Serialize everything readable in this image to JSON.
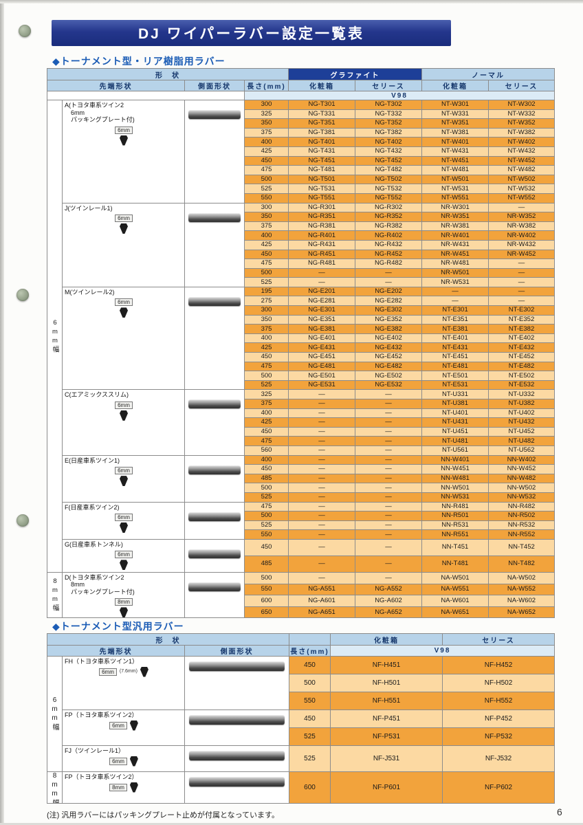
{
  "banner": {
    "title": "DJ ワイパーラバー設定一覧表"
  },
  "sections": [
    {
      "heading": "◆トーナメント型・リア樹脂用ラバー"
    },
    {
      "heading": "◆トーナメント型汎用ラバー"
    }
  ],
  "page": {
    "note": "(注) 汎用ラバーにはパッキングプレート止めが付属となっています。",
    "number": "6"
  },
  "colors": {
    "banner_navy": "#1a2d7c",
    "section_heading_blue": "#1b5cb5",
    "header_blue": "#b7d3e9",
    "graphite_navy": "#1d3f98",
    "v98_blue": "#dcebf6",
    "row_orange_dark": "#f2a33c",
    "row_orange_light": "#fcd9a2"
  },
  "table1": {
    "name": "rear-resin-rubber",
    "header": {
      "rows": [
        [
          {
            "t": "形　状",
            "cs": 4,
            "cls": "hb hshape"
          },
          {
            "t": "グラファイト",
            "cs": 2,
            "cls": "hg"
          },
          {
            "t": "ノーマル",
            "cs": 2,
            "cls": "hb"
          }
        ],
        [
          {
            "t": "先端形状",
            "cs": 2,
            "cls": "hb"
          },
          {
            "t": "側面形状",
            "cls": "hb"
          },
          {
            "t": "長さ(mm)",
            "cls": "hb"
          },
          {
            "t": "化粧箱",
            "cls": "hb"
          },
          {
            "t": "セリース",
            "cls": "hb"
          },
          {
            "t": "化粧箱",
            "cls": "hb"
          },
          {
            "t": "セリース",
            "cls": "hb"
          }
        ],
        [
          {
            "t": "",
            "cs": 3,
            "cls": "hw"
          },
          {
            "t": "V98",
            "cs": 5,
            "cls": "hv"
          }
        ]
      ]
    },
    "width_labels": [
      {
        "label": "6mm幅",
        "from_group": 0,
        "to_group": 6
      },
      {
        "label": "8mm幅",
        "from_group": 7,
        "to_group": 7
      }
    ],
    "groups": [
      {
        "id": "a",
        "size": "6mm",
        "lines": [
          "A(トヨタ車系ツイン2",
          "6mm",
          "パッキングプレート付)"
        ],
        "rows": [
          [
            "300",
            "NG-T301",
            "NG-T302",
            "NT-W301",
            "NT-W302"
          ],
          [
            "325",
            "NG-T331",
            "NG-T332",
            "NT-W331",
            "NT-W332"
          ],
          [
            "350",
            "NG-T351",
            "NG-T352",
            "NT-W351",
            "NT-W352"
          ],
          [
            "375",
            "NG-T381",
            "NG-T382",
            "NT-W381",
            "NT-W382"
          ],
          [
            "400",
            "NG-T401",
            "NG-T402",
            "NT-W401",
            "NT-W402"
          ],
          [
            "425",
            "NG-T431",
            "NG-T432",
            "NT-W431",
            "NT-W432"
          ],
          [
            "450",
            "NG-T451",
            "NG-T452",
            "NT-W451",
            "NT-W452"
          ],
          [
            "475",
            "NG-T481",
            "NG-T482",
            "NT-W481",
            "NT-W482"
          ],
          [
            "500",
            "NG-T501",
            "NG-T502",
            "NT-W501",
            "NT-W502"
          ],
          [
            "525",
            "NG-T531",
            "NG-T532",
            "NT-W531",
            "NT-W532"
          ],
          [
            "550",
            "NG-T551",
            "NG-T552",
            "NT-W551",
            "NT-W552"
          ]
        ]
      },
      {
        "id": "j",
        "size": "6mm",
        "lines": [
          "J(ツインレール1)"
        ],
        "rows": [
          [
            "300",
            "NG-R301",
            "NG-R302",
            "NR-W301",
            "—"
          ],
          [
            "350",
            "NG-R351",
            "NG-R352",
            "NR-W351",
            "NR-W352"
          ],
          [
            "375",
            "NG-R381",
            "NG-R382",
            "NR-W381",
            "NR-W382"
          ],
          [
            "400",
            "NG-R401",
            "NG-R402",
            "NR-W401",
            "NR-W402"
          ],
          [
            "425",
            "NG-R431",
            "NG-R432",
            "NR-W431",
            "NR-W432"
          ],
          [
            "450",
            "NG-R451",
            "NG-R452",
            "NR-W451",
            "NR-W452"
          ],
          [
            "475",
            "NG-R481",
            "NG-R482",
            "NR-W481",
            "—"
          ],
          [
            "500",
            "—",
            "—",
            "NR-W501",
            "—"
          ],
          [
            "525",
            "—",
            "—",
            "NR-W531",
            "—"
          ]
        ]
      },
      {
        "id": "m",
        "size": "6mm",
        "lines": [
          "M(ツインレール2)"
        ],
        "rows": [
          [
            "195",
            "NG-E201",
            "NG-E202",
            "—",
            "—"
          ],
          [
            "275",
            "NG-E281",
            "NG-E282",
            "—",
            "—"
          ],
          [
            "300",
            "NG-E301",
            "NG-E302",
            "NT-E301",
            "NT-E302"
          ],
          [
            "350",
            "NG-E351",
            "NG-E352",
            "NT-E351",
            "NT-E352"
          ],
          [
            "375",
            "NG-E381",
            "NG-E382",
            "NT-E381",
            "NT-E382"
          ],
          [
            "400",
            "NG-E401",
            "NG-E402",
            "NT-E401",
            "NT-E402"
          ],
          [
            "425",
            "NG-E431",
            "NG-E432",
            "NT-E431",
            "NT-E432"
          ],
          [
            "450",
            "NG-E451",
            "NG-E452",
            "NT-E451",
            "NT-E452"
          ],
          [
            "475",
            "NG-E481",
            "NG-E482",
            "NT-E481",
            "NT-E482"
          ],
          [
            "500",
            "NG-E501",
            "NG-E502",
            "NT-E501",
            "NT-E502"
          ],
          [
            "525",
            "NG-E531",
            "NG-E532",
            "NT-E531",
            "NT-E532"
          ]
        ]
      },
      {
        "id": "c",
        "size": "6mm",
        "lines": [
          "C(エアミックススリム)"
        ],
        "rows": [
          [
            "325",
            "—",
            "—",
            "NT-U331",
            "NT-U332"
          ],
          [
            "375",
            "—",
            "—",
            "NT-U381",
            "NT-U382"
          ],
          [
            "400",
            "—",
            "—",
            "NT-U401",
            "NT-U402"
          ],
          [
            "425",
            "—",
            "—",
            "NT-U431",
            "NT-U432"
          ],
          [
            "450",
            "—",
            "—",
            "NT-U451",
            "NT-U452"
          ],
          [
            "475",
            "—",
            "—",
            "NT-U481",
            "NT-U482"
          ],
          [
            "560",
            "—",
            "—",
            "NT-U561",
            "NT-U562"
          ]
        ]
      },
      {
        "id": "e",
        "size": "6mm",
        "lines": [
          "E(日産車系ツイン1)"
        ],
        "rows": [
          [
            "400",
            "—",
            "—",
            "NN-W401",
            "NN-W402"
          ],
          [
            "450",
            "—",
            "—",
            "NN-W451",
            "NN-W452"
          ],
          [
            "485",
            "—",
            "—",
            "NN-W481",
            "NN-W482"
          ],
          [
            "500",
            "—",
            "—",
            "NN-W501",
            "NN-W502"
          ],
          [
            "525",
            "—",
            "—",
            "NN-W531",
            "NN-W532"
          ]
        ]
      },
      {
        "id": "f",
        "size": "6mm",
        "lines": [
          "F(日産車系ツイン2)"
        ],
        "rows": [
          [
            "475",
            "—",
            "—",
            "NN-R481",
            "NN-R482"
          ],
          [
            "500",
            "—",
            "—",
            "NN-R501",
            "NN-R502"
          ],
          [
            "525",
            "—",
            "—",
            "NN-R531",
            "NN-R532"
          ],
          [
            "550",
            "—",
            "—",
            "NN-R551",
            "NN-R552"
          ]
        ]
      },
      {
        "id": "g",
        "size": "6mm",
        "lines": [
          "G(日産車系トンネル)"
        ],
        "rows": [
          [
            "450",
            "—",
            "—",
            "NN-T451",
            "NN-T452"
          ],
          [
            "485",
            "—",
            "—",
            "NN-T481",
            "NN-T482"
          ]
        ]
      },
      {
        "id": "d",
        "size": "8mm",
        "lines": [
          "D(トヨタ車系ツイン2",
          "8mm",
          "パッキングプレート付)"
        ],
        "rows": [
          [
            "500",
            "—",
            "—",
            "NA-W501",
            "NA-W502"
          ],
          [
            "550",
            "NG-A551",
            "NG-A552",
            "NA-W551",
            "NA-W552"
          ],
          [
            "600",
            "NG-A601",
            "NG-A602",
            "NA-W601",
            "NA-W602"
          ],
          [
            "650",
            "NG-A651",
            "NG-A652",
            "NA-W651",
            "NA-W652"
          ]
        ]
      }
    ]
  },
  "table2": {
    "name": "general-rubber",
    "header": {
      "rows": [
        [
          {
            "t": "形　状",
            "cs": 3,
            "cls": "hb hshape"
          },
          {
            "t": "",
            "cls": "hb"
          },
          {
            "t": "化粧箱",
            "cls": "hb"
          },
          {
            "t": "セリース",
            "cls": "hb"
          }
        ],
        [
          {
            "t": "先端形状",
            "cs": 2,
            "cls": "hb"
          },
          {
            "t": "側面形状",
            "cls": "hb"
          },
          {
            "t": "長さ(mm)",
            "cls": "hb"
          },
          {
            "t": "V98",
            "cs": 2,
            "cls": "hv"
          }
        ]
      ]
    },
    "width_labels": [
      {
        "label": "6mm幅",
        "from_group": 0,
        "to_group": 2
      },
      {
        "label": "8mm幅",
        "from_group": 3,
        "to_group": 3
      }
    ],
    "groups": [
      {
        "id": "fh",
        "size": "6mm",
        "size_sub": "(7.6mm)",
        "lines": [
          "FH（トヨタ車系ツイン1）"
        ],
        "rows": [
          [
            "450",
            "NF-H451",
            "NF-H452"
          ],
          [
            "500",
            "NF-H501",
            "NF-H502"
          ],
          [
            "550",
            "NF-H551",
            "NF-H552"
          ]
        ]
      },
      {
        "id": "fp6",
        "size": "6mm",
        "lines": [
          "FP（トヨタ車系ツイン2）"
        ],
        "rows": [
          [
            "450",
            "NF-P451",
            "NF-P452"
          ],
          [
            "525",
            "NF-P531",
            "NF-P532"
          ]
        ]
      },
      {
        "id": "fj",
        "size": "6mm",
        "lines": [
          "FJ（ツインレール1）"
        ],
        "rows": [
          [
            "525",
            "NF-J531",
            "NF-J532"
          ]
        ]
      },
      {
        "id": "fp8",
        "size": "8mm",
        "lines": [
          "FP（トヨタ車系ツイン2）"
        ],
        "rows": [
          [
            "600",
            "NF-P601",
            "NF-P602"
          ]
        ]
      }
    ]
  }
}
